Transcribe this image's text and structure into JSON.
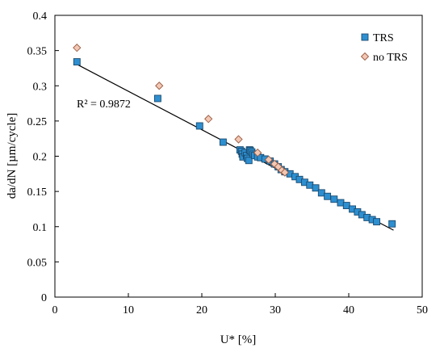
{
  "chart_data": {
    "type": "scatter",
    "title": "",
    "xlabel": "U* [%]",
    "ylabel": "da/dN [µm/cycle]",
    "xlim": [
      0,
      50
    ],
    "ylim": [
      0,
      0.4
    ],
    "x_ticks": [
      0,
      10,
      20,
      30,
      40,
      50
    ],
    "x_tick_labels": [
      "0",
      "10",
      "20",
      "30",
      "40",
      "50"
    ],
    "y_ticks": [
      0,
      0.05,
      0.1,
      0.15,
      0.2,
      0.25,
      0.3,
      0.35,
      0.4
    ],
    "y_tick_labels": [
      "0",
      "0.05",
      "0.1",
      "0.15",
      "0.2",
      "0.25",
      "0.3",
      "0.35",
      "0.4"
    ],
    "grid": false,
    "legend_position": "top-right",
    "annotation": "R² = 0.9872",
    "series": [
      {
        "name": "TRS",
        "marker": "square",
        "color": "#2e8fd0",
        "edge_color": "#1a4a6e",
        "points": [
          [
            3.0,
            0.334
          ],
          [
            14.0,
            0.282
          ],
          [
            19.7,
            0.243
          ],
          [
            22.9,
            0.22
          ],
          [
            25.2,
            0.209
          ],
          [
            25.4,
            0.207
          ],
          [
            25.5,
            0.203
          ],
          [
            25.6,
            0.199
          ],
          [
            25.9,
            0.205
          ],
          [
            26.1,
            0.201
          ],
          [
            26.2,
            0.197
          ],
          [
            26.4,
            0.194
          ],
          [
            26.5,
            0.209
          ],
          [
            26.6,
            0.208
          ],
          [
            26.8,
            0.206
          ],
          [
            27.0,
            0.203
          ],
          [
            27.2,
            0.201
          ],
          [
            27.6,
            0.199
          ],
          [
            28.0,
            0.198
          ],
          [
            28.6,
            0.196
          ],
          [
            29.3,
            0.193
          ],
          [
            29.9,
            0.189
          ],
          [
            30.4,
            0.185
          ],
          [
            30.8,
            0.181
          ],
          [
            31.3,
            0.178
          ],
          [
            32.0,
            0.175
          ],
          [
            32.7,
            0.171
          ],
          [
            33.3,
            0.167
          ],
          [
            34.0,
            0.163
          ],
          [
            34.7,
            0.159
          ],
          [
            35.5,
            0.155
          ],
          [
            36.3,
            0.148
          ],
          [
            37.1,
            0.143
          ],
          [
            38.0,
            0.139
          ],
          [
            38.9,
            0.134
          ],
          [
            39.7,
            0.13
          ],
          [
            40.5,
            0.125
          ],
          [
            41.2,
            0.121
          ],
          [
            41.8,
            0.117
          ],
          [
            42.5,
            0.113
          ],
          [
            43.2,
            0.11
          ],
          [
            43.8,
            0.107
          ],
          [
            45.9,
            0.104
          ]
        ]
      },
      {
        "name": "no TRS",
        "marker": "diamond",
        "color": "#f2c8b4",
        "edge_color": "#9a5a40",
        "points": [
          [
            3.0,
            0.354
          ],
          [
            14.2,
            0.3
          ],
          [
            20.9,
            0.253
          ],
          [
            25.0,
            0.224
          ],
          [
            27.6,
            0.205
          ],
          [
            29.1,
            0.195
          ],
          [
            29.9,
            0.189
          ],
          [
            30.4,
            0.185
          ],
          [
            30.9,
            0.18
          ],
          [
            31.3,
            0.177
          ]
        ]
      }
    ],
    "trendline": {
      "color": "#000000",
      "x_start": 2.9,
      "y_start": 0.331,
      "x_end": 46.1,
      "y_end": 0.095
    }
  }
}
